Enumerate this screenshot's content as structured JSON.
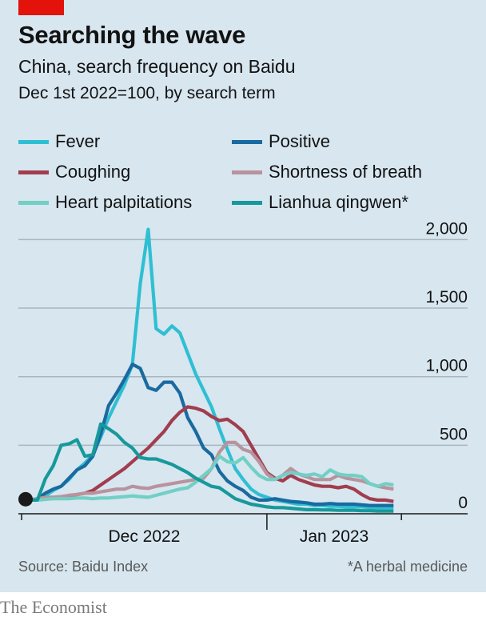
{
  "header": {
    "title": "Searching the wave",
    "subtitle": "China, search frequency on Baidu",
    "subtitle2": "Dec 1st 2022=100, by search term"
  },
  "footer": {
    "source": "Source: Baidu Index",
    "note": "*A herbal medicine",
    "brand": "The Economist"
  },
  "colors": {
    "accent_red": "#e3120b",
    "background": "#d7e6ef"
  },
  "chart_data": {
    "type": "line",
    "title": "Searching the wave",
    "subtitle": "China, search frequency on Baidu",
    "ylabel": "Dec 1st 2022=100, by search term",
    "xlabel": "",
    "ylim": [
      0,
      2000
    ],
    "yticks": [
      0,
      500,
      1000,
      1500,
      2000
    ],
    "ytick_labels": [
      "0",
      "500",
      "1,000",
      "1,500",
      "2,000"
    ],
    "x_unit": "days since Dec 1st 2022",
    "xlim": [
      0,
      48
    ],
    "x_ticks": [
      0,
      31,
      48
    ],
    "x_labels": [
      {
        "label": "Dec 2022",
        "center_day": 15.5
      },
      {
        "label": "Jan 2023",
        "center_day": 39.5
      }
    ],
    "grid": true,
    "legend_position": "top",
    "baseline_marker": {
      "day": 0,
      "value": 100
    },
    "x": [
      0,
      1,
      2,
      3,
      4,
      5,
      6,
      7,
      8,
      9,
      10,
      11,
      12,
      13,
      14,
      15,
      16,
      17,
      18,
      19,
      20,
      21,
      22,
      23,
      24,
      25,
      26,
      27,
      28,
      29,
      30,
      31,
      32,
      33,
      34,
      35,
      36,
      37,
      38,
      39,
      40,
      41,
      42,
      43,
      44,
      45,
      46,
      47
    ],
    "series": [
      {
        "name": "Fever",
        "color": "#2fbfd3",
        "values": [
          100,
          100,
          110,
          130,
          170,
          200,
          250,
          320,
          370,
          430,
          560,
          700,
          820,
          940,
          1090,
          1680,
          2075,
          1350,
          1310,
          1370,
          1320,
          1170,
          1020,
          900,
          780,
          620,
          470,
          330,
          250,
          180,
          140,
          120,
          100,
          90,
          80,
          70,
          70,
          60,
          60,
          55,
          55,
          50,
          50,
          50,
          45,
          45,
          45,
          45
        ]
      },
      {
        "name": "Positive",
        "color": "#1a6aa0",
        "values": [
          100,
          100,
          110,
          150,
          180,
          200,
          260,
          320,
          350,
          420,
          580,
          790,
          880,
          980,
          1090,
          1060,
          920,
          900,
          960,
          960,
          880,
          700,
          600,
          480,
          430,
          310,
          240,
          200,
          170,
          120,
          100,
          100,
          110,
          100,
          90,
          85,
          80,
          70,
          70,
          75,
          70,
          70,
          70,
          65,
          60,
          60,
          60,
          60
        ]
      },
      {
        "name": "Coughing",
        "color": "#a13d4e",
        "values": [
          100,
          100,
          105,
          110,
          115,
          120,
          130,
          140,
          150,
          170,
          210,
          250,
          290,
          330,
          380,
          430,
          480,
          540,
          600,
          680,
          740,
          780,
          770,
          750,
          710,
          680,
          690,
          650,
          600,
          500,
          400,
          300,
          260,
          240,
          280,
          250,
          230,
          210,
          200,
          200,
          190,
          200,
          180,
          140,
          110,
          100,
          100,
          90
        ]
      },
      {
        "name": "Shortness of breath",
        "color": "#b8939e",
        "values": [
          100,
          100,
          110,
          120,
          120,
          125,
          135,
          140,
          150,
          150,
          160,
          170,
          180,
          180,
          200,
          190,
          185,
          200,
          210,
          220,
          230,
          240,
          250,
          260,
          330,
          450,
          520,
          520,
          470,
          450,
          380,
          290,
          250,
          280,
          330,
          290,
          270,
          250,
          250,
          250,
          280,
          260,
          250,
          240,
          220,
          200,
          190,
          180
        ]
      },
      {
        "name": "Heart palpitations",
        "color": "#72cfc4",
        "values": [
          100,
          100,
          100,
          105,
          110,
          110,
          110,
          115,
          115,
          110,
          115,
          115,
          120,
          125,
          130,
          125,
          120,
          135,
          150,
          165,
          180,
          190,
          230,
          280,
          330,
          420,
          380,
          370,
          410,
          340,
          280,
          250,
          250,
          280,
          300,
          290,
          280,
          290,
          270,
          320,
          290,
          280,
          280,
          270,
          220,
          200,
          220,
          210
        ]
      },
      {
        "name": "Lianhua qingwen*",
        "color": "#17999b",
        "values": [
          100,
          100,
          100,
          255,
          350,
          500,
          510,
          540,
          420,
          430,
          655,
          620,
          580,
          520,
          480,
          410,
          400,
          400,
          380,
          360,
          330,
          300,
          260,
          230,
          200,
          190,
          150,
          110,
          90,
          70,
          60,
          50,
          45,
          45,
          40,
          35,
          30,
          30,
          28,
          28,
          25,
          25,
          25,
          22,
          22,
          20,
          20,
          20
        ]
      }
    ]
  }
}
